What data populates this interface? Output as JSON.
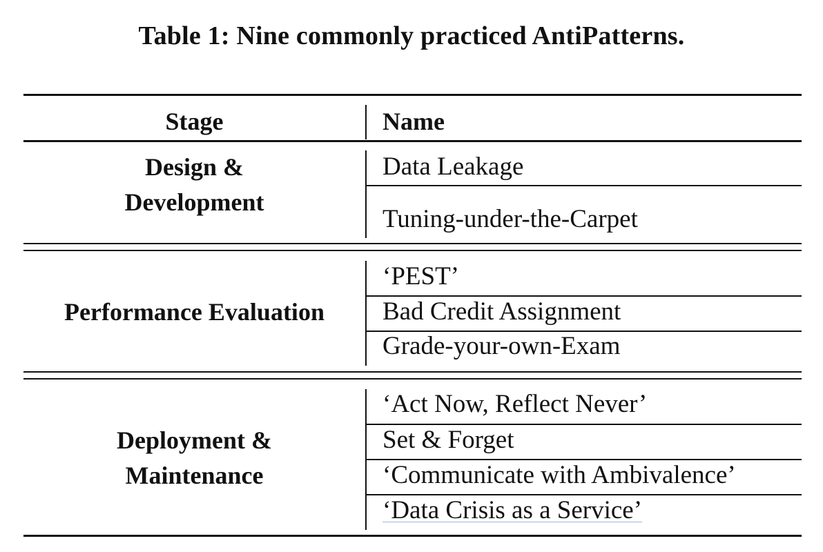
{
  "caption": "Table 1: Nine commonly practiced AntiPatterns.",
  "table": {
    "headers": {
      "stage": "Stage",
      "name": "Name"
    },
    "groups": [
      {
        "stage_lines": [
          "Design &",
          "Development"
        ],
        "names": [
          "Data Leakage",
          "Tuning-under-the-Carpet"
        ]
      },
      {
        "stage_lines": [
          "Performance Evaluation"
        ],
        "names": [
          "‘PEST’",
          "Bad Credit Assignment",
          "Grade-your-own-Exam"
        ]
      },
      {
        "stage_lines": [
          "Deployment &",
          "Maintenance"
        ],
        "names": [
          "‘Act Now, Reflect Never’",
          "Set & Forget",
          "‘Communicate with Ambivalence’",
          "‘Data Crisis as a Service’"
        ]
      }
    ]
  }
}
